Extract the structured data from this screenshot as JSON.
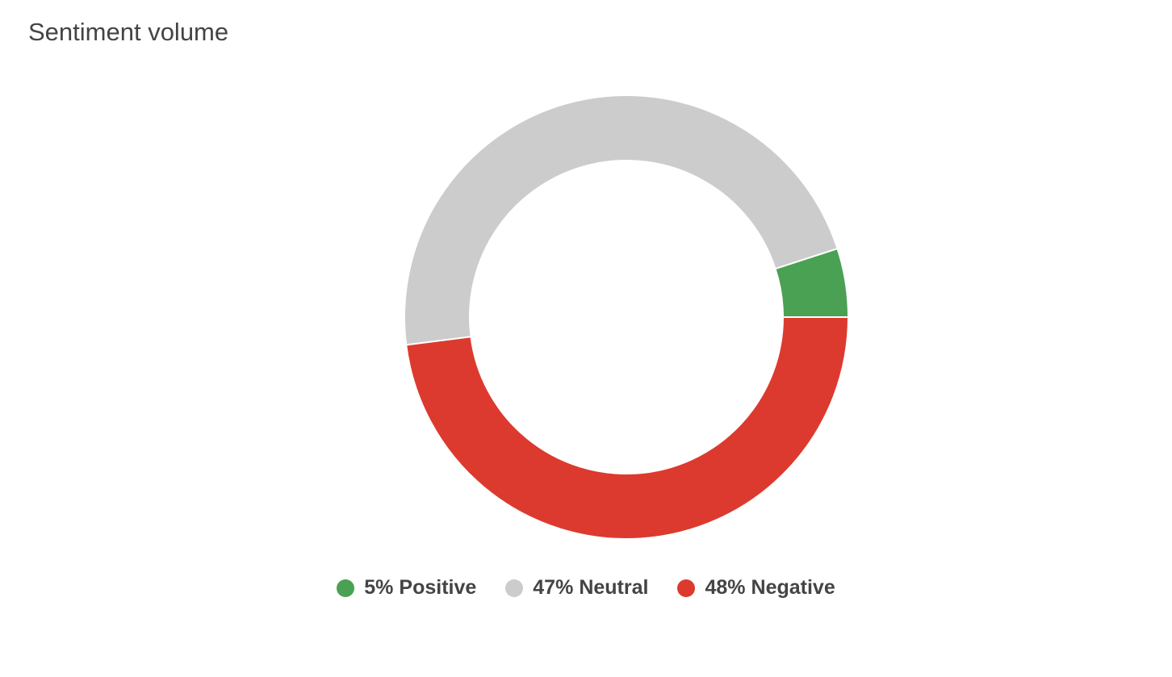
{
  "chart_data": {
    "type": "donut",
    "title": "Sentiment volume",
    "categories": [
      "Positive",
      "Neutral",
      "Negative"
    ],
    "values": [
      5,
      47,
      48
    ],
    "value_labels": [
      "5%",
      "47%",
      "48%"
    ],
    "colors": [
      "#4aa153",
      "#cccccc",
      "#dc3a2f"
    ]
  }
}
